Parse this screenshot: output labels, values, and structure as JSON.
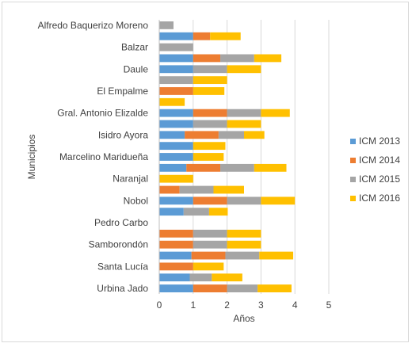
{
  "chart_data": {
    "type": "bar",
    "orientation": "horizontal",
    "stacked": true,
    "xlabel": "Años",
    "ylabel": "Municipios",
    "xlim": [
      0,
      5
    ],
    "xticks": [
      0,
      1,
      2,
      3,
      4,
      5
    ],
    "grid": true,
    "legend_position": "right",
    "categories": [
      "Alfredo Baquerizo Moreno",
      "",
      "Balzar",
      "",
      "Daule",
      "",
      "El Empalme",
      "",
      "Gral. Antonio Elizalde",
      "",
      "Isidro Ayora",
      "",
      "Marcelino Maridueña",
      "",
      "Naranjal",
      "",
      "Nobol",
      "",
      "Pedro Carbo",
      "",
      "Samborondón",
      "",
      "Santa Lucía",
      "",
      "Urbina Jado"
    ],
    "series": [
      {
        "name": "ICM 2013",
        "color": "#5B9BD5",
        "values": [
          0,
          1,
          0,
          1,
          1,
          0,
          0,
          0,
          1,
          1,
          0.75,
          1,
          1,
          0.8,
          0,
          0,
          1,
          0.72,
          0,
          0,
          0,
          0.95,
          0,
          0.9,
          1
        ]
      },
      {
        "name": "ICM 2014",
        "color": "#ED7D31",
        "values": [
          0,
          0.5,
          0,
          0.8,
          0,
          0,
          1,
          0,
          1,
          0,
          1,
          0,
          0,
          1,
          0,
          0.6,
          1,
          0,
          0,
          1,
          1,
          1,
          1,
          0,
          1
        ]
      },
      {
        "name": "ICM 2015",
        "color": "#A5A5A5",
        "values": [
          0.42,
          0,
          1,
          1,
          1,
          1,
          0,
          0,
          1,
          1,
          0.75,
          0,
          0,
          1,
          0,
          1,
          1,
          0.75,
          0,
          1,
          1,
          1,
          0,
          0.65,
          0.9
        ]
      },
      {
        "name": "ICM 2016",
        "color": "#FFC000",
        "values": [
          0,
          0.9,
          0,
          0.8,
          1,
          1,
          0.92,
          0.75,
          0.85,
          1,
          0.6,
          0.95,
          0.9,
          0.95,
          1,
          0.9,
          1,
          0.55,
          0,
          1,
          1,
          1,
          0.9,
          0.9,
          1
        ]
      }
    ]
  }
}
